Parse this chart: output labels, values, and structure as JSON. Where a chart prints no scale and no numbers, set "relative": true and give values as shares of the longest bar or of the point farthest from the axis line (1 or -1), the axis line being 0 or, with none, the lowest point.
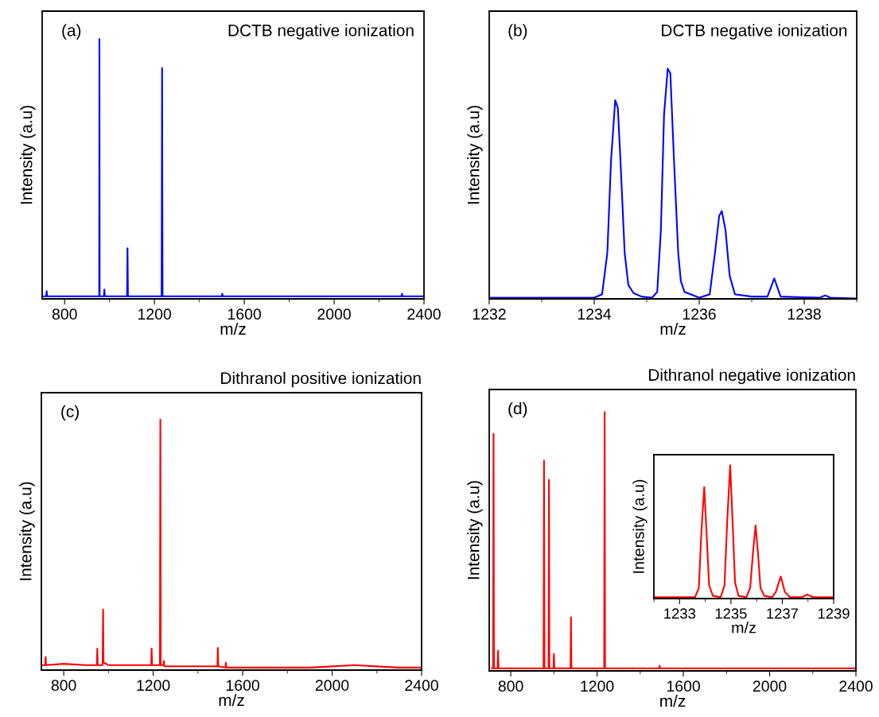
{
  "chart_data": [
    {
      "type": "line",
      "relative": true,
      "annotations": [
        "(a)",
        "DCTB negative ionization"
      ],
      "xlabel": "m/z",
      "ylabel": "Intensity (a.u)",
      "xlim": [
        700,
        2400
      ],
      "xticks": [
        800,
        1200,
        1600,
        2000,
        2400
      ],
      "x": [
        700,
        718,
        720,
        722,
        800,
        950,
        954,
        955,
        956,
        960,
        975,
        977,
        979,
        1000,
        1078,
        1080,
        1082,
        1200,
        1232,
        1234,
        1236,
        1300,
        1500,
        1502,
        1504,
        1600,
        2000,
        2300,
        2302,
        2304,
        2400
      ],
      "series": [
        {
          "color": "#0000ff",
          "values": [
            0.01,
            0.01,
            0.03,
            0.01,
            0.01,
            0.01,
            0.01,
            1.0,
            0.01,
            0.01,
            0.01,
            0.036,
            0.01,
            0.01,
            0.01,
            0.195,
            0.01,
            0.01,
            0.01,
            0.888,
            0.01,
            0.01,
            0.01,
            0.02,
            0.01,
            0.01,
            0.01,
            0.01,
            0.02,
            0.01,
            0.01
          ]
        }
      ]
    },
    {
      "type": "line",
      "relative": true,
      "annotations": [
        "(b)",
        "DCTB negative ionization"
      ],
      "xlabel": "m/z",
      "ylabel": "Intensity (a.u)",
      "xlim": [
        1232,
        1239
      ],
      "xticks": [
        1232,
        1234,
        1236,
        1238
      ],
      "x": [
        1232,
        1234.0,
        1234.15,
        1234.25,
        1234.32,
        1234.4,
        1234.45,
        1234.5,
        1234.58,
        1234.65,
        1234.75,
        1234.9,
        1235.1,
        1235.2,
        1235.27,
        1235.33,
        1235.4,
        1235.45,
        1235.52,
        1235.6,
        1235.65,
        1235.72,
        1236.0,
        1236.2,
        1236.3,
        1236.38,
        1236.43,
        1236.5,
        1236.58,
        1236.68,
        1237.0,
        1237.3,
        1237.43,
        1237.55,
        1238.3,
        1238.4,
        1238.5,
        1239
      ],
      "series": [
        {
          "color": "#0000ff",
          "values": [
            0.005,
            0.005,
            0.02,
            0.2,
            0.6,
            0.863,
            0.83,
            0.6,
            0.2,
            0.06,
            0.025,
            0.01,
            0.005,
            0.03,
            0.3,
            0.8,
            1.0,
            0.98,
            0.6,
            0.2,
            0.077,
            0.03,
            0.005,
            0.02,
            0.2,
            0.36,
            0.382,
            0.3,
            0.1,
            0.02,
            0.01,
            0.01,
            0.089,
            0.01,
            0.005,
            0.015,
            0.005,
            0.002
          ]
        }
      ]
    },
    {
      "type": "line",
      "relative": true,
      "title": "Dithranol positive ionization",
      "annotations": [
        "(c)"
      ],
      "xlabel": "m/z",
      "ylabel": "Intensity (a.u)",
      "xlim": [
        700,
        2400
      ],
      "xticks": [
        800,
        1200,
        1600,
        2000,
        2400
      ],
      "x": [
        700,
        717,
        719,
        721,
        800,
        900,
        948,
        950,
        952,
        974,
        976,
        978,
        1000,
        1100,
        1191,
        1193,
        1195,
        1230,
        1232,
        1234,
        1246,
        1248,
        1250,
        1400,
        1487,
        1489,
        1491,
        1523,
        1525,
        1527,
        1700,
        1900,
        2100,
        2300,
        2400
      ],
      "series": [
        {
          "color": "#ff0000",
          "values": [
            0.02,
            0.02,
            0.052,
            0.02,
            0.025,
            0.02,
            0.02,
            0.086,
            0.02,
            0.02,
            0.242,
            0.03,
            0.02,
            0.02,
            0.02,
            0.086,
            0.02,
            0.02,
            1.0,
            0.02,
            0.02,
            0.036,
            0.015,
            0.015,
            0.015,
            0.089,
            0.015,
            0.01,
            0.03,
            0.01,
            0.01,
            0.01,
            0.02,
            0.01,
            0.01
          ]
        }
      ]
    },
    {
      "type": "line",
      "relative": true,
      "title": "Dithranol negative ionization",
      "annotations": [
        "(d)"
      ],
      "xlabel": "m/z",
      "ylabel": "Intensity (a.u)",
      "xlim": [
        700,
        2400
      ],
      "xticks": [
        800,
        1200,
        1600,
        2000,
        2400
      ],
      "x": [
        712,
        718,
        720,
        722,
        739,
        741,
        743,
        900,
        952,
        954,
        956,
        975,
        977,
        979,
        998,
        1000,
        1002,
        1077,
        1079,
        1081,
        1233,
        1235,
        1237,
        1400,
        1488,
        1490,
        1492,
        2400
      ],
      "series": [
        {
          "color": "#ff0000",
          "values": [
            0.01,
            0.01,
            0.916,
            0.01,
            0.01,
            0.078,
            0.01,
            0.01,
            0.01,
            0.812,
            0.01,
            0.01,
            0.738,
            0.01,
            0.01,
            0.065,
            0.01,
            0.01,
            0.207,
            0.01,
            0.01,
            1.0,
            0.01,
            0.01,
            0.01,
            0.02,
            0.01,
            0.01
          ]
        }
      ]
    },
    {
      "type": "line",
      "relative": true,
      "xlabel": "m/z",
      "ylabel": "Intensity (a.u)",
      "xlim": [
        1232,
        1239
      ],
      "xticks": [
        1233,
        1235,
        1237,
        1239
      ],
      "x": [
        1232,
        1233.6,
        1233.75,
        1233.85,
        1233.96,
        1234.05,
        1234.15,
        1234.3,
        1234.6,
        1234.75,
        1234.86,
        1234.97,
        1235.06,
        1235.16,
        1235.3,
        1235.6,
        1235.75,
        1235.86,
        1235.96,
        1236.05,
        1236.15,
        1236.3,
        1236.6,
        1236.75,
        1236.94,
        1237.1,
        1237.3,
        1237.75,
        1237.97,
        1238.2,
        1239
      ],
      "series": [
        {
          "color": "#ff0000",
          "values": [
            0.01,
            0.01,
            0.08,
            0.5,
            0.837,
            0.5,
            0.1,
            0.02,
            0.01,
            0.1,
            0.6,
            1.0,
            0.6,
            0.12,
            0.02,
            0.01,
            0.08,
            0.35,
            0.548,
            0.35,
            0.08,
            0.02,
            0.01,
            0.05,
            0.165,
            0.05,
            0.01,
            0.01,
            0.03,
            0.01,
            0.01
          ]
        }
      ]
    }
  ]
}
